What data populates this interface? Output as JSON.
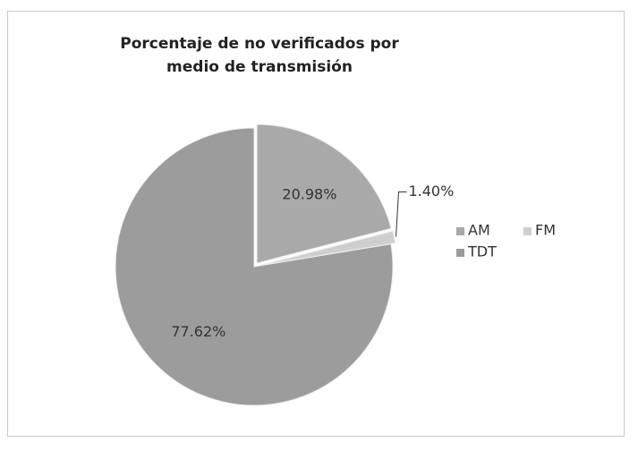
{
  "chart_data": {
    "type": "pie",
    "title": "Porcentaje de no verificados por medio de transmisión",
    "categories": [
      "AM",
      "FM",
      "TDT"
    ],
    "values": [
      20.98,
      1.4,
      77.62
    ],
    "value_labels": [
      "20.98%",
      "1.40%",
      "77.62%"
    ],
    "colors": [
      "#a9a9a9",
      "#cfcfcf",
      "#9c9c9c"
    ],
    "legend": "right"
  }
}
